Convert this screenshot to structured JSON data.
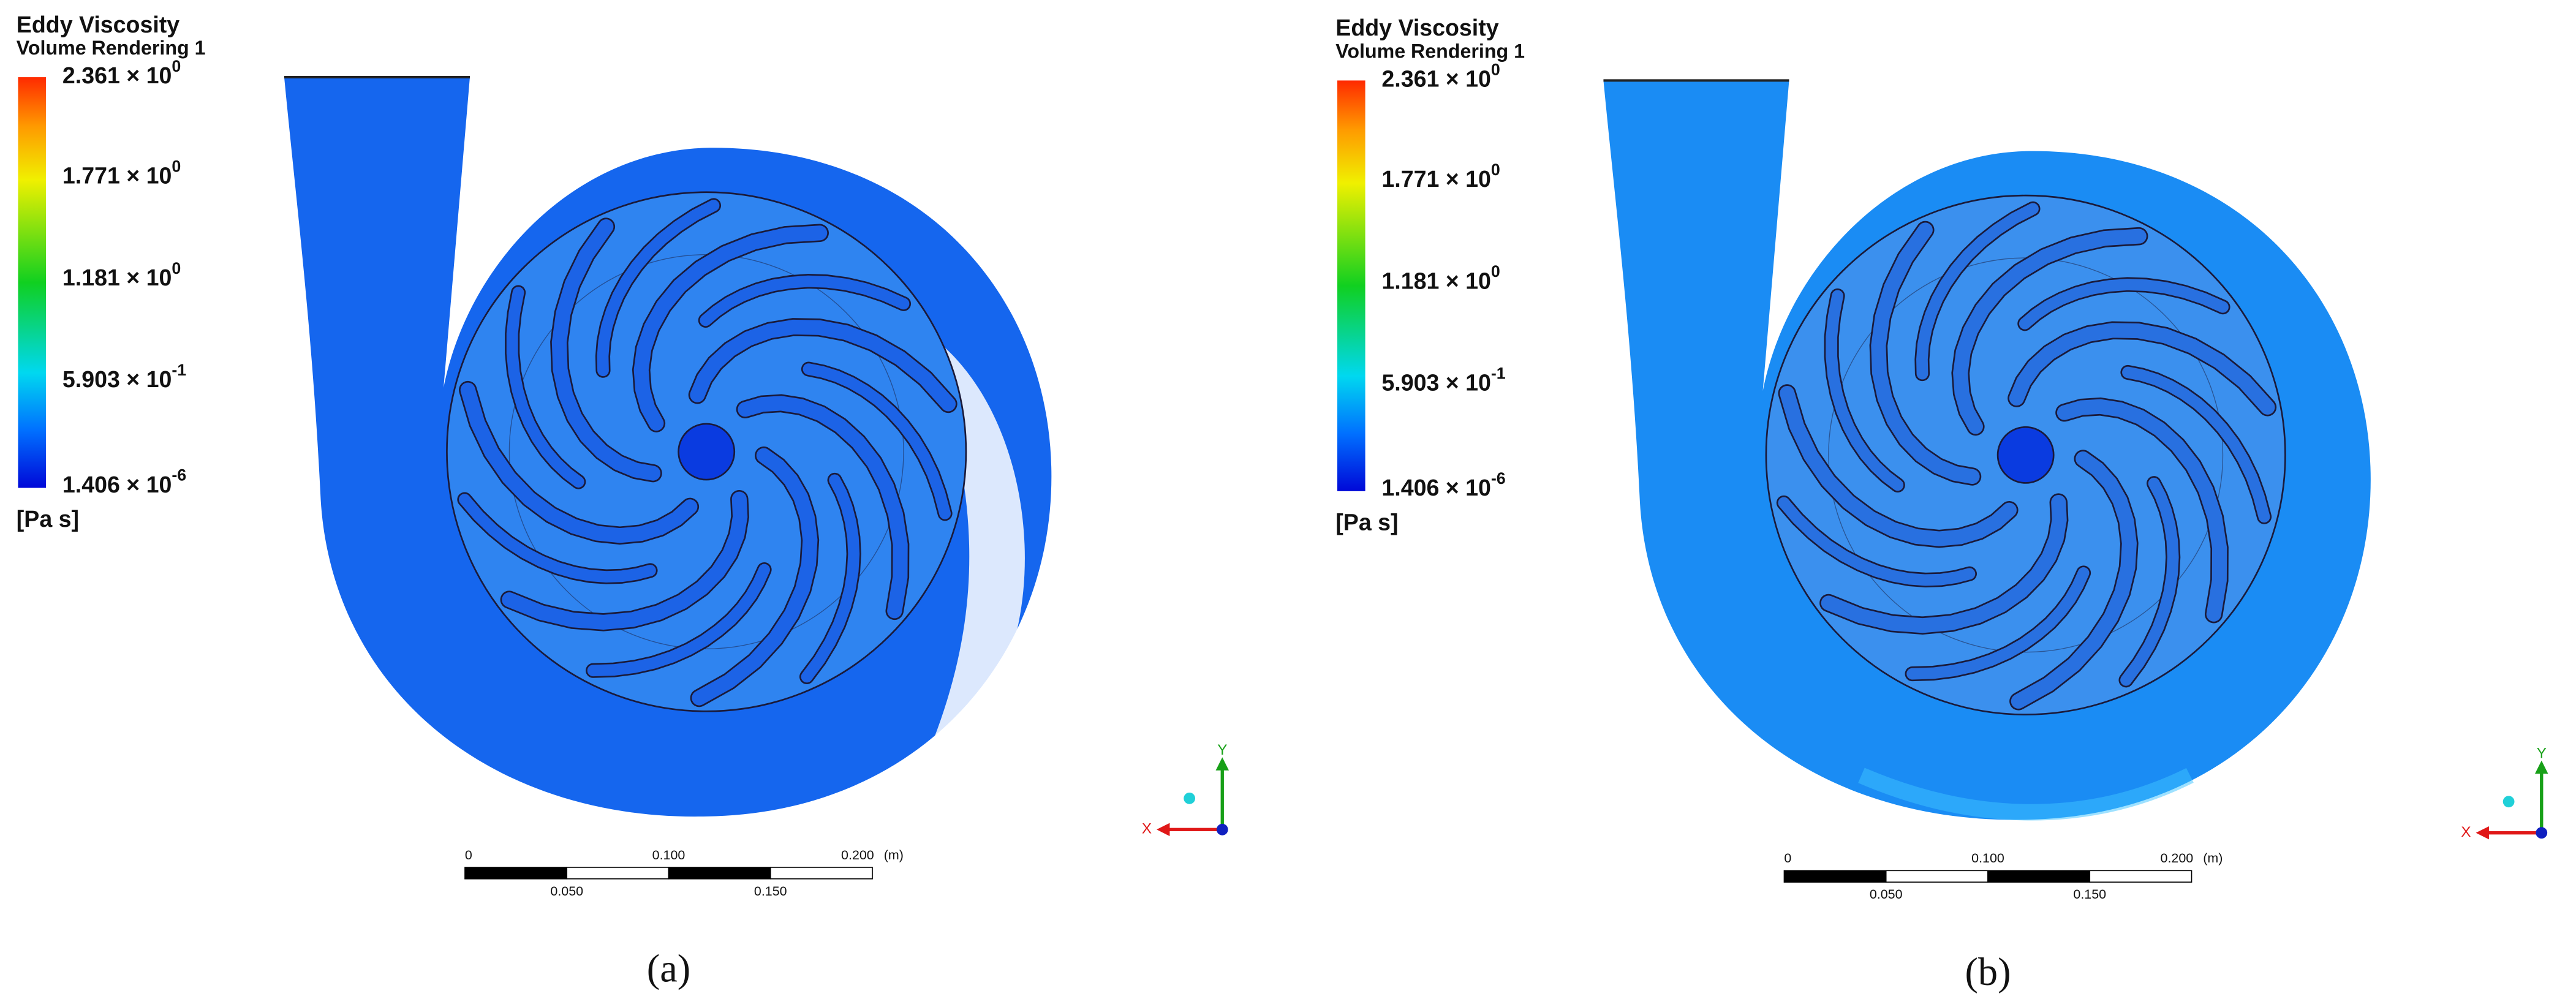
{
  "panels": [
    {
      "legend": {
        "title": "Eddy Viscosity",
        "subtitle": "Volume Rendering 1",
        "labels": [
          {
            "mantissa": "2.361 × 10",
            "exponent": "0"
          },
          {
            "mantissa": "1.771 × 10",
            "exponent": "0"
          },
          {
            "mantissa": "1.181 × 10",
            "exponent": "0"
          },
          {
            "mantissa": "5.903 × 10",
            "exponent": "-1"
          },
          {
            "mantissa": "1.406 × 10",
            "exponent": "-6"
          }
        ],
        "unit": "[Pa s]"
      },
      "scale_bar": {
        "top_labels": [
          "0",
          "0.100",
          "0.200"
        ],
        "unit": "(m)",
        "bottom_labels": [
          "0.050",
          "0.150"
        ]
      },
      "axes": {
        "x": "X",
        "y": "Y"
      },
      "caption": "(a)"
    },
    {
      "legend": {
        "title": "Eddy Viscosity",
        "subtitle": "Volume Rendering 1",
        "labels": [
          {
            "mantissa": "2.361 × 10",
            "exponent": "0"
          },
          {
            "mantissa": "1.771 × 10",
            "exponent": "0"
          },
          {
            "mantissa": "1.181 × 10",
            "exponent": "0"
          },
          {
            "mantissa": "5.903 × 10",
            "exponent": "-1"
          },
          {
            "mantissa": "1.406 × 10",
            "exponent": "-6"
          }
        ],
        "unit": "[Pa s]"
      },
      "scale_bar": {
        "top_labels": [
          "0",
          "0.100",
          "0.200"
        ],
        "unit": "(m)",
        "bottom_labels": [
          "0.050",
          "0.150"
        ]
      },
      "axes": {
        "x": "X",
        "y": "Y"
      },
      "caption": "(b)"
    }
  ]
}
